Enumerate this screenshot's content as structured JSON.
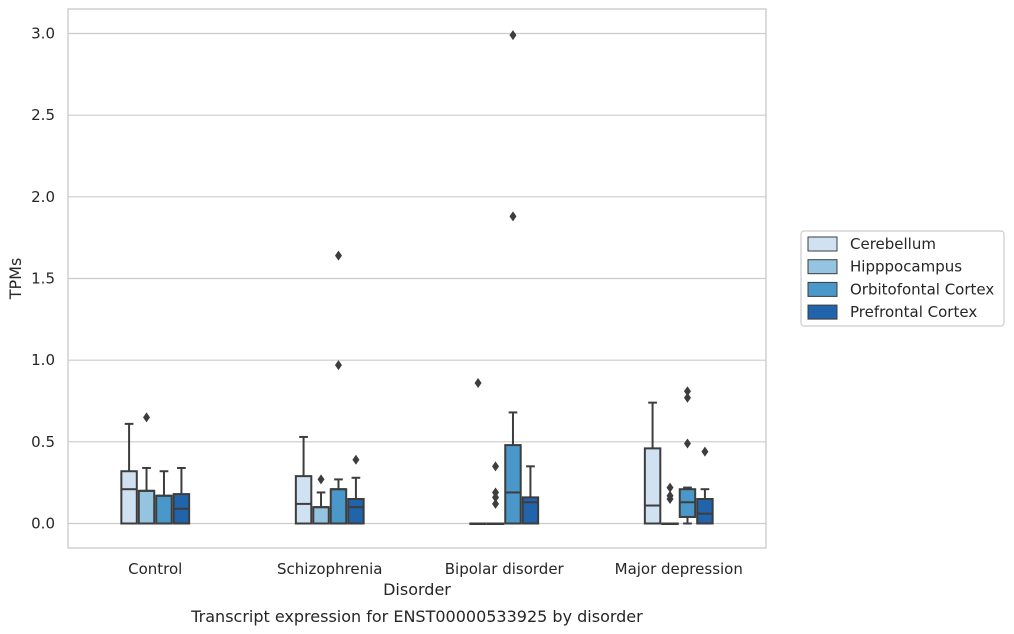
{
  "chart_data": {
    "type": "box",
    "title": "",
    "caption": "Transcript expression for ENST00000533925 by disorder",
    "xlabel": "Disorder",
    "ylabel": "TPMs",
    "ylim": [
      -0.15,
      3.15
    ],
    "yticks": [
      "0.0",
      "0.5",
      "1.0",
      "1.5",
      "2.0",
      "2.5",
      "3.0"
    ],
    "grid": true,
    "legend_position": "right",
    "categories": [
      "Control",
      "Schizophrenia",
      "Bipolar disorder",
      "Major depression"
    ],
    "series": [
      {
        "name": "Cerebellum",
        "color": "#d0e1f2",
        "boxes": [
          {
            "q1": 0.0,
            "median": 0.21,
            "q3": 0.32,
            "whisker_low": 0.0,
            "whisker_high": 0.61,
            "outliers": []
          },
          {
            "q1": 0.0,
            "median": 0.12,
            "q3": 0.29,
            "whisker_low": 0.0,
            "whisker_high": 0.53,
            "outliers": []
          },
          {
            "q1": 0.0,
            "median": 0.0,
            "q3": 0.0,
            "whisker_low": 0.0,
            "whisker_high": 0.0,
            "outliers": [
              0.86
            ]
          },
          {
            "q1": 0.0,
            "median": 0.11,
            "q3": 0.46,
            "whisker_low": 0.0,
            "whisker_high": 0.74,
            "outliers": []
          }
        ]
      },
      {
        "name": "Hipppocampus",
        "color": "#94c4df",
        "boxes": [
          {
            "q1": 0.0,
            "median": 0.2,
            "q3": 0.2,
            "whisker_low": 0.0,
            "whisker_high": 0.34,
            "outliers": [
              0.65
            ]
          },
          {
            "q1": 0.0,
            "median": 0.1,
            "q3": 0.1,
            "whisker_low": 0.0,
            "whisker_high": 0.19,
            "outliers": [
              0.27
            ]
          },
          {
            "q1": 0.0,
            "median": 0.0,
            "q3": 0.0,
            "whisker_low": 0.0,
            "whisker_high": 0.0,
            "outliers": [
              0.12,
              0.19,
              0.16,
              0.35
            ]
          },
          {
            "q1": 0.0,
            "median": 0.0,
            "q3": 0.0,
            "whisker_low": 0.0,
            "whisker_high": 0.0,
            "outliers": [
              0.15,
              0.17,
              0.22
            ]
          }
        ]
      },
      {
        "name": "Orbitofontal Cortex",
        "color": "#4a98c9",
        "boxes": [
          {
            "q1": 0.0,
            "median": 0.17,
            "q3": 0.17,
            "whisker_low": 0.0,
            "whisker_high": 0.32,
            "outliers": []
          },
          {
            "q1": 0.0,
            "median": 0.21,
            "q3": 0.21,
            "whisker_low": 0.0,
            "whisker_high": 0.27,
            "outliers": [
              0.97,
              1.64
            ]
          },
          {
            "q1": 0.0,
            "median": 0.19,
            "q3": 0.48,
            "whisker_low": 0.0,
            "whisker_high": 0.68,
            "outliers": [
              1.88,
              2.99
            ]
          },
          {
            "q1": 0.04,
            "median": 0.13,
            "q3": 0.21,
            "whisker_low": 0.0,
            "whisker_high": 0.22,
            "outliers": [
              0.49,
              0.77,
              0.81
            ]
          }
        ]
      },
      {
        "name": "Prefrontal Cortex",
        "color": "#2164ab",
        "boxes": [
          {
            "q1": 0.0,
            "median": 0.09,
            "q3": 0.18,
            "whisker_low": 0.0,
            "whisker_high": 0.34,
            "outliers": []
          },
          {
            "q1": 0.0,
            "median": 0.1,
            "q3": 0.15,
            "whisker_low": 0.0,
            "whisker_high": 0.28,
            "outliers": [
              0.39
            ]
          },
          {
            "q1": 0.0,
            "median": 0.13,
            "q3": 0.16,
            "whisker_low": 0.0,
            "whisker_high": 0.35,
            "outliers": []
          },
          {
            "q1": 0.0,
            "median": 0.06,
            "q3": 0.15,
            "whisker_low": 0.0,
            "whisker_high": 0.21,
            "outliers": [
              0.44
            ]
          }
        ]
      }
    ]
  }
}
